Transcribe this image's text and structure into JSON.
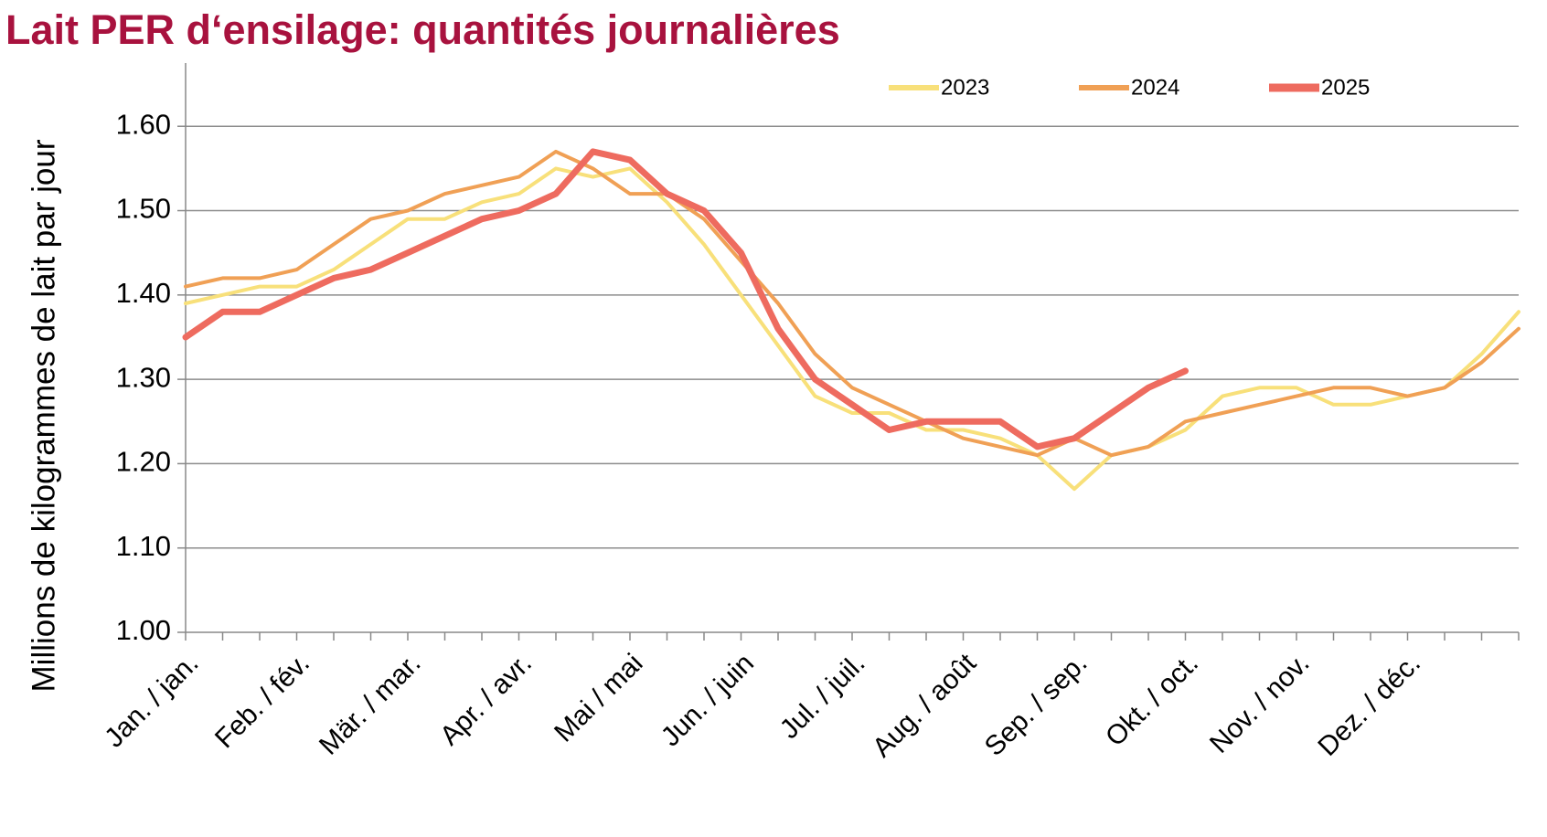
{
  "chart_data": {
    "type": "line",
    "title": "Lait PER d‘ensilage: quantités journalières",
    "y_label": "Millions de kilogrammes de lait par jour",
    "categories": [
      "Jan. / jan.",
      null,
      null,
      "Feb. / fév.",
      null,
      null,
      "Mär. / mar.",
      null,
      null,
      "Apr. / avr.",
      null,
      null,
      "Mai / mai",
      null,
      null,
      "Jun. / juin",
      null,
      null,
      "Jul. / juil.",
      null,
      null,
      "Aug. / août",
      null,
      null,
      "Sep. / sep.",
      null,
      null,
      "Okt. / oct.",
      null,
      null,
      "Nov. / nov.",
      null,
      null,
      "Dez. / déc.",
      null,
      null,
      null
    ],
    "series": [
      {
        "name": "2023",
        "color": "#f8e07a",
        "width": 4,
        "values": [
          1.39,
          1.4,
          1.41,
          1.41,
          1.43,
          1.46,
          1.49,
          1.49,
          1.51,
          1.52,
          1.55,
          1.54,
          1.55,
          1.51,
          1.46,
          1.4,
          1.34,
          1.28,
          1.26,
          1.26,
          1.24,
          1.24,
          1.23,
          1.21,
          1.17,
          1.21,
          1.22,
          1.24,
          1.28,
          1.29,
          1.29,
          1.27,
          1.27,
          1.28,
          1.29,
          1.33,
          1.38
        ]
      },
      {
        "name": "2024",
        "color": "#f0a055",
        "width": 4,
        "values": [
          1.41,
          1.42,
          1.42,
          1.43,
          1.46,
          1.49,
          1.5,
          1.52,
          1.53,
          1.54,
          1.57,
          1.55,
          1.52,
          1.52,
          1.49,
          1.44,
          1.39,
          1.33,
          1.29,
          1.27,
          1.25,
          1.23,
          1.22,
          1.21,
          1.23,
          1.21,
          1.22,
          1.25,
          1.26,
          1.27,
          1.28,
          1.29,
          1.29,
          1.28,
          1.29,
          1.32,
          1.36
        ]
      },
      {
        "name": "2025",
        "color": "#ee6b5f",
        "width": 7,
        "values": [
          1.35,
          1.38,
          1.38,
          1.4,
          1.42,
          1.43,
          1.45,
          1.47,
          1.49,
          1.5,
          1.52,
          1.57,
          1.56,
          1.52,
          1.5,
          1.45,
          1.36,
          1.3,
          1.27,
          1.24,
          1.25,
          1.25,
          1.25,
          1.22,
          1.23,
          1.26,
          1.29,
          1.31,
          null,
          null,
          null,
          null,
          null,
          null,
          null,
          null,
          null
        ]
      }
    ],
    "ylim": [
      1.0,
      1.675
    ],
    "yticks": [
      {
        "value": 1.0,
        "label": "1.00"
      },
      {
        "value": 1.1,
        "label": "1.10"
      },
      {
        "value": 1.2,
        "label": "1.20"
      },
      {
        "value": 1.3,
        "label": "1.30"
      },
      {
        "value": 1.4,
        "label": "1.40"
      },
      {
        "value": 1.5,
        "label": "1.50"
      },
      {
        "value": 1.6,
        "label": "1.60"
      }
    ],
    "grid": true,
    "legend": "top"
  }
}
